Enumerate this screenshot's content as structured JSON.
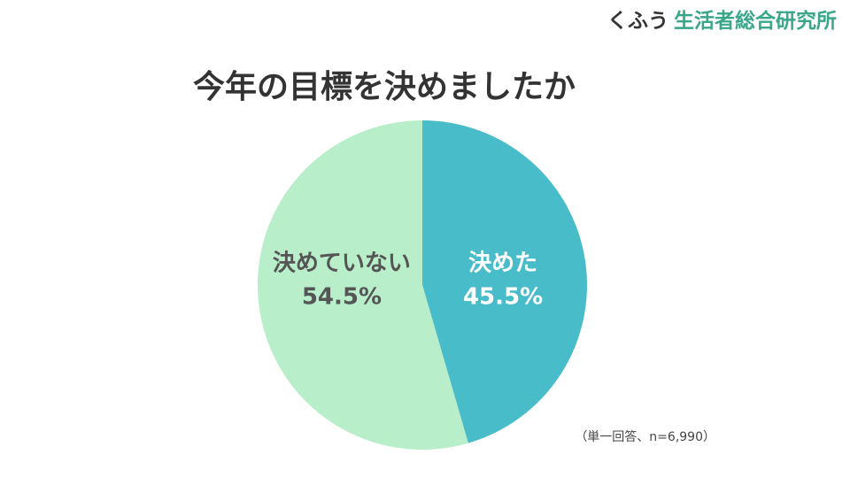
{
  "brand": {
    "name": "くふう",
    "sub": "生活者総合研究所"
  },
  "chart_data": {
    "type": "pie",
    "title": "今年の目標を決めましたか",
    "categories": [
      "決めた",
      "決めていない"
    ],
    "values": [
      45.5,
      54.5
    ],
    "value_labels": [
      "45.5%",
      "54.5%"
    ],
    "colors": [
      "#48bcc8",
      "#b8eec9"
    ],
    "label_colors": [
      "#ffffff",
      "#555555"
    ],
    "note": "（単一回答、n=6,990）"
  }
}
